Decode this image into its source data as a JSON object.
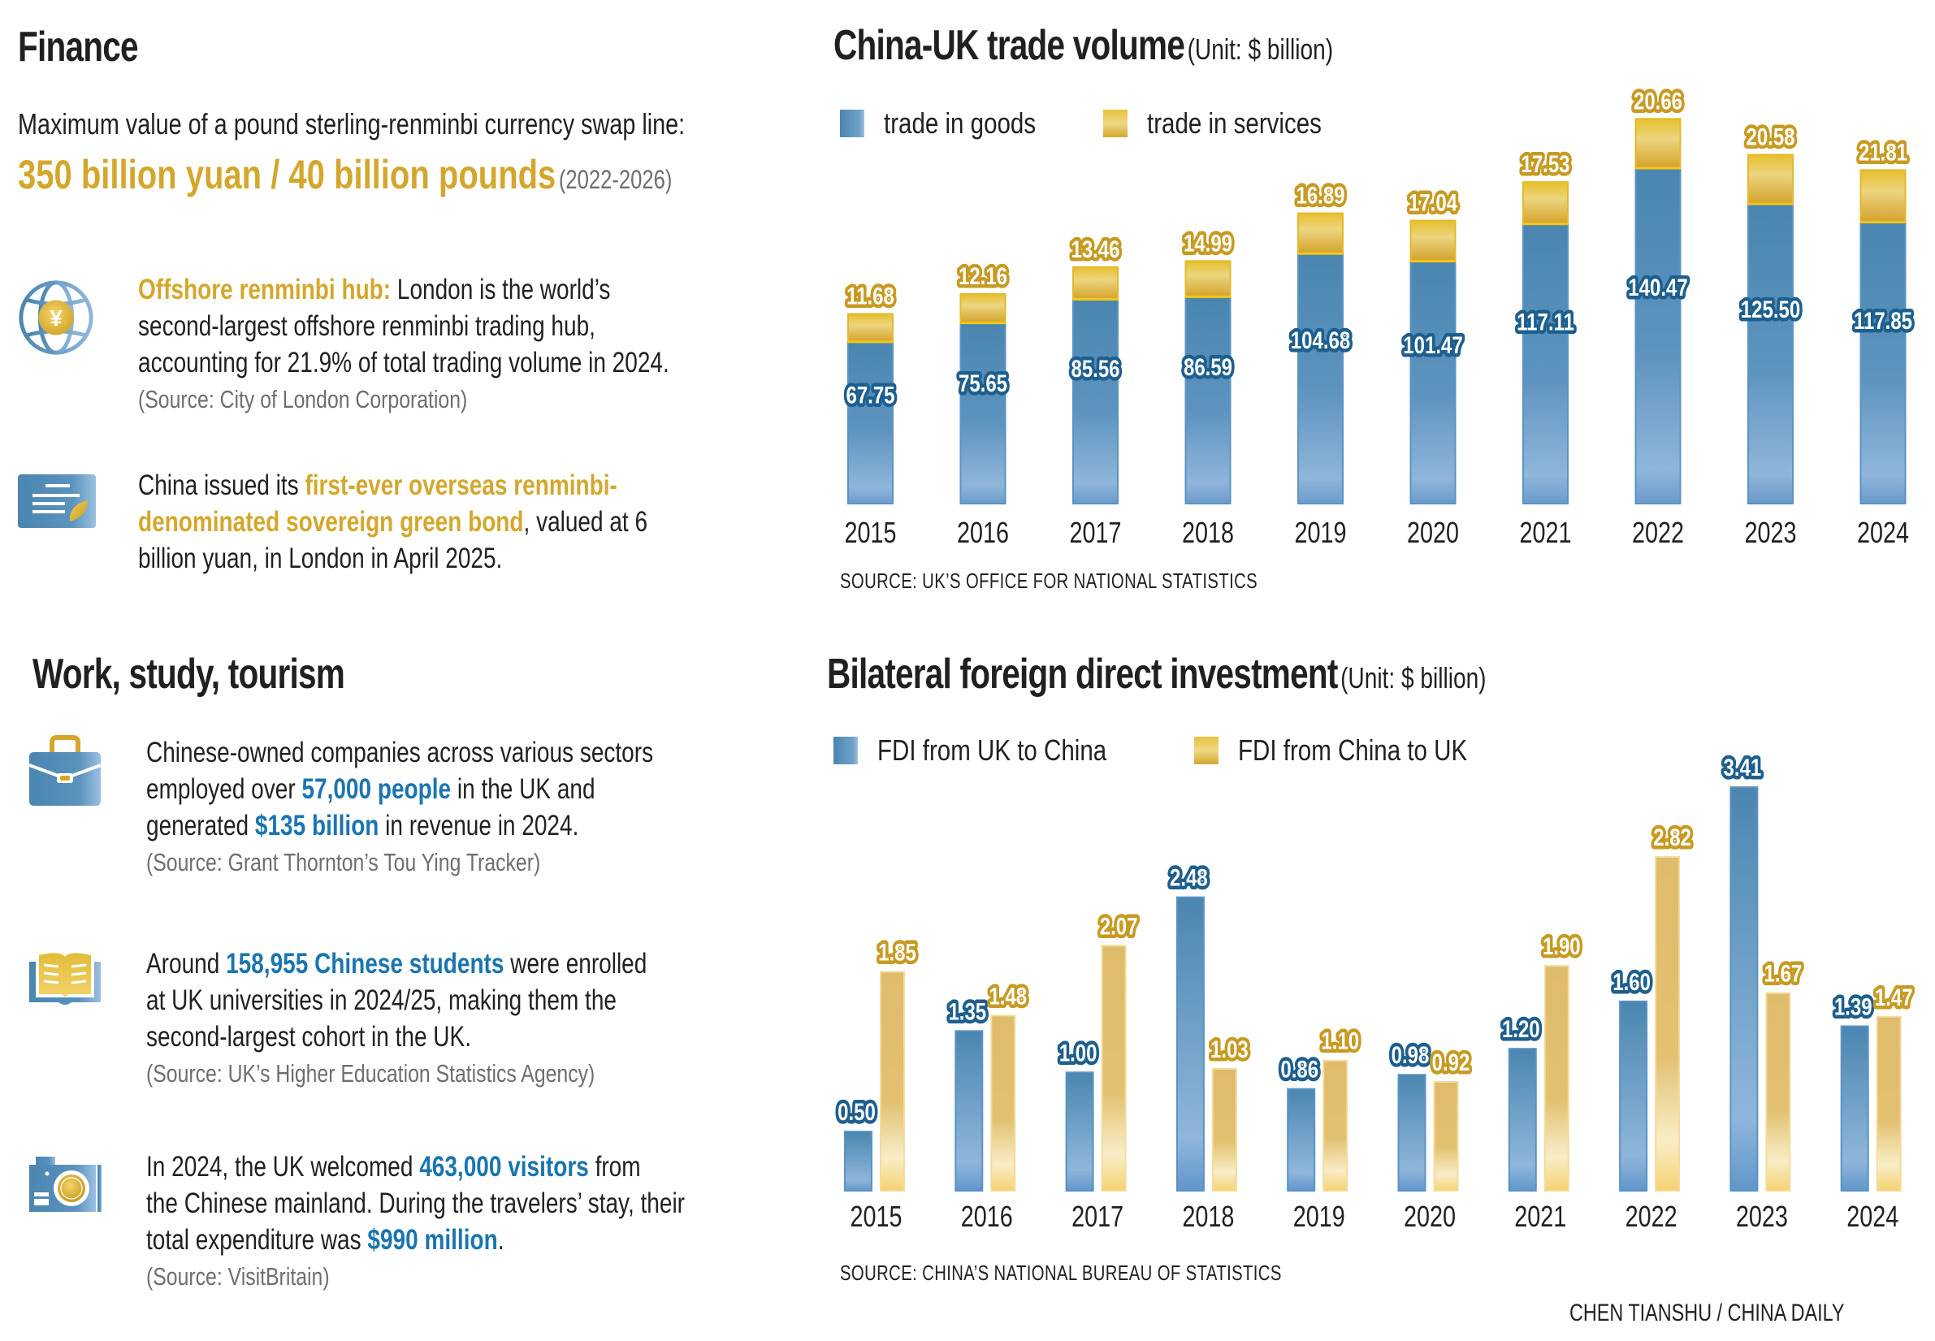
{
  "finance": {
    "heading": "Finance",
    "swap_intro": "Maximum value of a pound sterling-renminbi currency swap line:",
    "swap_value": "350 billion yuan / 40 billion pounds",
    "swap_period": "(2022-2026)",
    "items": [
      {
        "icon": "globe-yuan-icon",
        "highlight": "Offshore renminbi hub:",
        "lines": [
          " London is the world’s",
          "second-largest offshore renminbi trading hub,",
          "accounting for 21.9% of total trading volume in 2024."
        ],
        "source": "(Source: City of London Corporation)"
      },
      {
        "icon": "green-bond-document-icon",
        "pre": "China issued its ",
        "highlight1": "first-ever overseas renminbi-",
        "highlight2": "denominated sovereign green bond",
        "post1": ", valued at 6",
        "line3": "billion yuan, in London in April 2025."
      }
    ]
  },
  "work": {
    "heading": "Work, study, tourism",
    "items": [
      {
        "icon": "briefcase-icon",
        "line1": "Chinese-owned companies across various sectors",
        "line2_pre": "employed over ",
        "line2_hl": "57,000 people",
        "line2_post": " in the UK and",
        "line3_pre": "generated ",
        "line3_hl": "$135 billion",
        "line3_post": " in revenue in 2024.",
        "source": "(Source: Grant Thornton’s Tou Ying Tracker)"
      },
      {
        "icon": "open-book-icon",
        "line1_pre": "Around ",
        "line1_hl": "158,955 Chinese students",
        "line1_post": " were enrolled",
        "line2": "at UK universities in 2024/25, making them the",
        "line3": "second-largest cohort in the UK.",
        "source": "(Source: UK’s Higher Education Statistics Agency)"
      },
      {
        "icon": "camera-icon",
        "line1_pre": "In 2024, the UK welcomed ",
        "line1_hl": "463,000 visitors",
        "line1_post": " from",
        "line2": "the Chinese mainland. During the travelers’ stay, their",
        "line3_pre": "total expenditure was ",
        "line3_hl": "$990 million",
        "line3_post": ".",
        "source": "(Source: VisitBritain)"
      }
    ]
  },
  "colors": {
    "blue": "#4a86b0",
    "blue_light": "#8fb6da",
    "blue_label": "#1d5f8e",
    "gold": "#d4a72c",
    "gold_light": "#e8d27a",
    "gold_pale": "#e2bd6c",
    "highlight_blue": "#1a75b1"
  },
  "credit": "CHEN TIANSHU / CHINA DAILY",
  "chart_data": [
    {
      "type": "bar",
      "stacked": true,
      "title": "China-UK trade volume",
      "unit": "(Unit: $ billion)",
      "categories": [
        "2015",
        "2016",
        "2017",
        "2018",
        "2019",
        "2020",
        "2021",
        "2022",
        "2023",
        "2024"
      ],
      "series": [
        {
          "name": "trade in goods",
          "values": [
            67.75,
            75.65,
            85.56,
            86.59,
            104.68,
            101.47,
            117.11,
            140.47,
            125.5,
            117.85
          ],
          "labels": [
            "67.75",
            "75.65",
            "85.56",
            "86.59",
            "104.68",
            "101.47",
            "117.11",
            "140.47",
            "125.50",
            "117.85"
          ]
        },
        {
          "name": "trade in services",
          "values": [
            11.68,
            12.16,
            13.46,
            14.99,
            16.89,
            17.04,
            17.53,
            20.66,
            20.58,
            21.81
          ],
          "labels": [
            "11.68",
            "12.16",
            "13.46",
            "14.99",
            "16.89",
            "17.04",
            "17.53",
            "20.66",
            "20.58",
            "21.81"
          ]
        }
      ],
      "ylim": [
        0,
        165
      ],
      "grid": false,
      "legend": "top-left",
      "source": "SOURCE: UK’S OFFICE FOR NATIONAL STATISTICS"
    },
    {
      "type": "bar",
      "stacked": false,
      "title": "Bilateral foreign direct investment",
      "unit": "(Unit: $ billion)",
      "categories": [
        "2015",
        "2016",
        "2017",
        "2018",
        "2019",
        "2020",
        "2021",
        "2022",
        "2023",
        "2024"
      ],
      "series": [
        {
          "name": "FDI from UK to China",
          "values": [
            0.5,
            1.35,
            1.0,
            2.48,
            0.86,
            0.98,
            1.2,
            1.6,
            3.41,
            1.39
          ],
          "labels": [
            "0.50",
            "1.35",
            "1.00",
            "2.48",
            "0.86",
            "0.98",
            "1.20",
            "1.60",
            "3.41",
            "1.39"
          ]
        },
        {
          "name": "FDI from China to UK",
          "values": [
            1.85,
            1.48,
            2.07,
            1.03,
            1.1,
            0.92,
            1.9,
            2.82,
            1.67,
            1.47
          ],
          "labels": [
            "1.85",
            "1.48",
            "2.07",
            "1.03",
            "1.10",
            "0.92",
            "1.90",
            "2.82",
            "1.67",
            "1.47"
          ]
        }
      ],
      "ylim": [
        0,
        3.5
      ],
      "grid": false,
      "legend": "top-left",
      "source": "SOURCE: CHINA’S NATIONAL BUREAU OF STATISTICS"
    }
  ]
}
